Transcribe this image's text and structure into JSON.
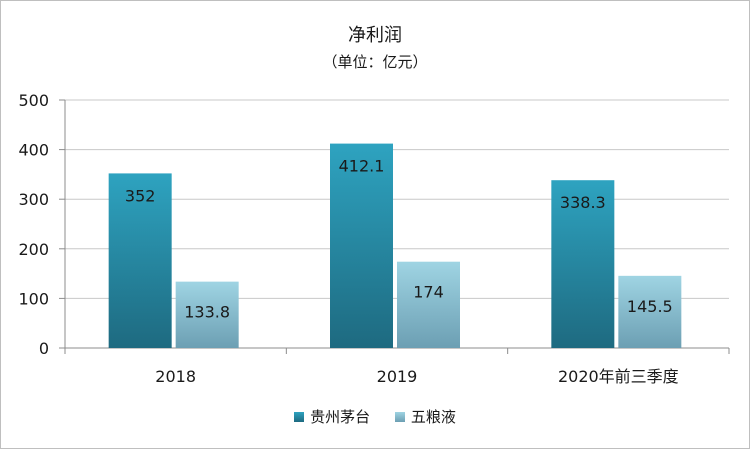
{
  "chart_data": {
    "type": "bar",
    "title": "净利润",
    "subtitle": "（单位：亿元）",
    "categories": [
      "2018",
      "2019",
      "2020年前三季度"
    ],
    "series": [
      {
        "name": "贵州茅台",
        "values": [
          352,
          412.1,
          338.3
        ],
        "labels": [
          "352",
          "412.1",
          "338.3"
        ],
        "color": "#2a8fa8"
      },
      {
        "name": "五粮液",
        "values": [
          133.8,
          174,
          145.5
        ],
        "labels": [
          "133.8",
          "174",
          "145.5"
        ],
        "color": "#8ec6d6"
      }
    ],
    "ylim": [
      0,
      500
    ],
    "yticks": [
      "0",
      "100",
      "200",
      "300",
      "400",
      "500"
    ],
    "grid": true,
    "legend": "bottom"
  }
}
